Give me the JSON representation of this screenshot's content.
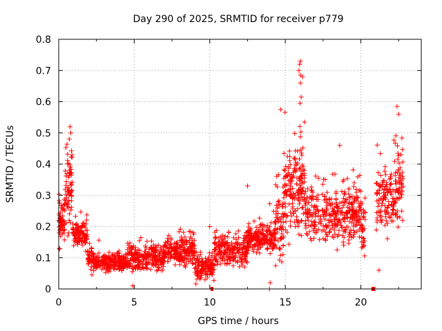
{
  "chart_data": {
    "type": "scatter",
    "title": "Day 290 of 2025, SRMTID for receiver p779",
    "xlabel": "GPS time / hours",
    "ylabel": "SRMTID / TECUs",
    "xlim": [
      0,
      24
    ],
    "ylim": [
      0,
      0.8
    ],
    "x_ticks": [
      "0",
      "5",
      "10",
      "15",
      "20"
    ],
    "y_ticks": [
      "0",
      "0.1",
      "0.2",
      "0.3",
      "0.4",
      "0.5",
      "0.6",
      "0.7",
      "0.8"
    ],
    "grid": true,
    "marker": "+",
    "color": "#ff0000",
    "series": [
      {
        "name": "SRMTID",
        "segments": [
          {
            "x0": 0.0,
            "x1": 0.4,
            "center": 0.21,
            "spread": 0.09,
            "n": 60
          },
          {
            "x0": 0.4,
            "x1": 0.9,
            "center": 0.33,
            "spread": 0.18,
            "n": 70
          },
          {
            "x0": 0.9,
            "x1": 1.9,
            "center": 0.17,
            "spread": 0.05,
            "n": 110
          },
          {
            "x0": 1.9,
            "x1": 2.3,
            "center": 0.1,
            "spread": 0.04,
            "n": 40
          },
          {
            "x0": 2.3,
            "x1": 4.5,
            "center": 0.085,
            "spread": 0.035,
            "n": 240
          },
          {
            "x0": 4.5,
            "x1": 7.0,
            "center": 0.1,
            "spread": 0.05,
            "n": 260
          },
          {
            "x0": 7.0,
            "x1": 9.0,
            "center": 0.12,
            "spread": 0.06,
            "n": 220
          },
          {
            "x0": 9.0,
            "x1": 10.3,
            "center": 0.07,
            "spread": 0.05,
            "n": 140
          },
          {
            "x0": 10.3,
            "x1": 12.5,
            "center": 0.12,
            "spread": 0.06,
            "n": 220
          },
          {
            "x0": 12.5,
            "x1": 14.3,
            "center": 0.16,
            "spread": 0.06,
            "n": 200
          },
          {
            "x0": 14.3,
            "x1": 14.9,
            "center": 0.2,
            "spread": 0.12,
            "n": 70
          },
          {
            "x0": 14.9,
            "x1": 15.9,
            "center": 0.32,
            "spread": 0.18,
            "n": 120
          },
          {
            "x0": 15.9,
            "x1": 16.3,
            "center": 0.36,
            "spread": 0.22,
            "n": 60
          },
          {
            "x0": 16.3,
            "x1": 20.0,
            "center": 0.24,
            "spread": 0.11,
            "n": 360
          },
          {
            "x0": 20.0,
            "x1": 20.3,
            "center": 0.2,
            "spread": 0.1,
            "n": 30
          },
          {
            "x0": 21.0,
            "x1": 22.2,
            "center": 0.28,
            "spread": 0.11,
            "n": 120
          },
          {
            "x0": 22.2,
            "x1": 22.8,
            "center": 0.33,
            "spread": 0.16,
            "n": 70
          }
        ],
        "outliers": [
          {
            "x": 0.75,
            "y": 0.52
          },
          {
            "x": 0.8,
            "y": 0.5
          },
          {
            "x": 0.7,
            "y": 0.48
          },
          {
            "x": 14.7,
            "y": 0.575
          },
          {
            "x": 16.0,
            "y": 0.73
          },
          {
            "x": 15.95,
            "y": 0.72
          },
          {
            "x": 15.9,
            "y": 0.7
          },
          {
            "x": 16.0,
            "y": 0.66
          },
          {
            "x": 16.05,
            "y": 0.615
          },
          {
            "x": 15.98,
            "y": 0.595
          },
          {
            "x": 22.4,
            "y": 0.585
          },
          {
            "x": 22.5,
            "y": 0.56
          },
          {
            "x": 18.6,
            "y": 0.46
          },
          {
            "x": 12.5,
            "y": 0.33
          },
          {
            "x": 13.95,
            "y": 0.0
          },
          {
            "x": 14.0,
            "y": 0.02
          },
          {
            "x": 10.0,
            "y": 0.2
          },
          {
            "x": 2.2,
            "y": 0.045
          },
          {
            "x": 4.9,
            "y": 0.01
          },
          {
            "x": 7.0,
            "y": 0.14
          },
          {
            "x": 21.2,
            "y": 0.06
          }
        ]
      }
    ],
    "gaps_at_zero": [
      {
        "x0": 10.05,
        "x1": 10.2
      },
      {
        "x0": 20.7,
        "x1": 20.95
      }
    ]
  }
}
